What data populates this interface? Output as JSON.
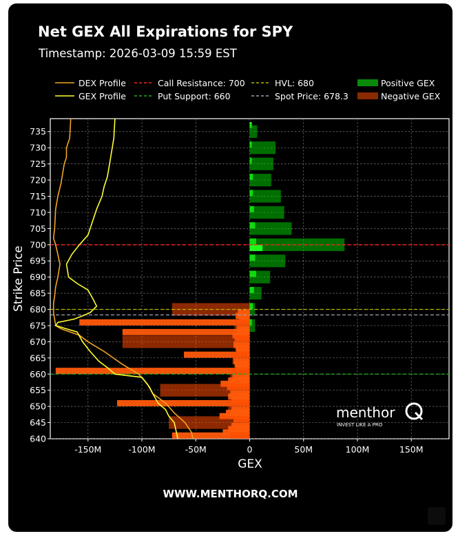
{
  "title": "Net GEX All Expirations for SPY",
  "subtitle": "Timestamp: 2026-03-09 15:59 EST",
  "footer": "WWW.MENTHORQ.COM",
  "logo": {
    "name": "menthor",
    "tagline": "INVEST LIKE A PRO"
  },
  "colors": {
    "background": "#000000",
    "positive_gex": "#00d000",
    "negative_gex": "#ff4400",
    "dex_profile": "#f5a623",
    "gex_profile": "#ffff33",
    "call_resistance": "#ff2020",
    "put_support": "#20b020",
    "hvl": "#b8b800",
    "spot_price": "#9aa3b5"
  },
  "legend": [
    {
      "key": "dex",
      "label": "DEX Profile",
      "style": "solid",
      "color": "#f5a623"
    },
    {
      "key": "gex",
      "label": "GEX Profile",
      "style": "solid",
      "color": "#ffff33"
    },
    {
      "key": "callres",
      "label": "Call Resistance: 700",
      "style": "dashed",
      "color": "#ff2020"
    },
    {
      "key": "putsup",
      "label": "Put Support: 660",
      "style": "dashed",
      "color": "#20b020"
    },
    {
      "key": "hvl",
      "label": "HVL: 680",
      "style": "dashed",
      "color": "#b8b800"
    },
    {
      "key": "spot",
      "label": "Spot Price: 678.3",
      "style": "dashed",
      "color": "#9aa3b5"
    },
    {
      "key": "pos",
      "label": "Positive GEX",
      "style": "box",
      "color": "#0a8a0a"
    },
    {
      "key": "neg",
      "label": "Negative GEX",
      "style": "box",
      "color": "#8a2a00"
    }
  ],
  "chart_data": {
    "type": "bar",
    "orientation": "horizontal",
    "xlabel": "GEX",
    "ylabel": "Strike Price",
    "xlim": [
      -185,
      185
    ],
    "ylim": [
      640,
      739
    ],
    "x_unit": "M",
    "grid": true,
    "legend_position": "top",
    "x_ticks": [
      "-150M",
      "-100M",
      "-50M",
      "0",
      "50M",
      "100M",
      "150M"
    ],
    "y_ticks": [
      640,
      645,
      650,
      655,
      660,
      665,
      670,
      675,
      680,
      685,
      690,
      695,
      700,
      705,
      710,
      715,
      720,
      725,
      730,
      735
    ],
    "levels": [
      {
        "name": "Call Resistance",
        "value": 700
      },
      {
        "name": "Put Support",
        "value": 660
      },
      {
        "name": "HVL",
        "value": 680
      },
      {
        "name": "Spot Price",
        "value": 678.3
      }
    ],
    "series": [
      {
        "name": "Positive GEX",
        "strikes": [
          737,
          735,
          731,
          730,
          726,
          725,
          721,
          720,
          716,
          715,
          711,
          710,
          706,
          705,
          701,
          700,
          699,
          696,
          695,
          691,
          690,
          686,
          685,
          681,
          680,
          676,
          675
        ],
        "values": [
          2,
          7,
          2,
          24,
          2,
          22,
          3,
          20,
          3,
          29,
          4,
          32,
          5,
          39,
          6,
          88,
          12,
          5,
          33,
          6,
          19,
          4,
          11,
          3,
          5,
          2,
          5
        ]
      },
      {
        "name": "Negative GEX",
        "strikes": [
          680,
          679,
          678,
          677,
          676,
          675,
          674,
          673,
          672,
          671,
          670,
          669,
          668,
          667,
          666,
          665,
          664,
          663,
          662,
          661,
          660,
          659,
          658,
          657,
          656,
          655,
          654,
          653,
          652,
          651,
          650,
          649,
          648,
          647,
          646,
          645,
          644,
          643,
          642,
          641,
          640
        ],
        "values": [
          -72,
          -11,
          -13,
          -10,
          -158,
          -14,
          -12,
          -118,
          -16,
          -14,
          -118,
          -15,
          -13,
          -12,
          -61,
          -16,
          -15,
          -14,
          -13,
          -180,
          -18,
          -16,
          -20,
          -27,
          -21,
          -83,
          -18,
          -20,
          -17,
          -123,
          -20,
          -17,
          -22,
          -28,
          -15,
          -75,
          -17,
          -20,
          -25,
          -72,
          -18
        ]
      }
    ],
    "profiles": [
      {
        "name": "DEX Profile",
        "points": [
          [
            -166,
            739
          ],
          [
            -167,
            733
          ],
          [
            -170,
            730
          ],
          [
            -170,
            727
          ],
          [
            -172,
            725
          ],
          [
            -175,
            719
          ],
          [
            -178,
            715
          ],
          [
            -180,
            711
          ],
          [
            -181,
            705
          ],
          [
            -182,
            702
          ],
          [
            -180,
            700
          ],
          [
            -178,
            697
          ],
          [
            -176,
            694
          ],
          [
            -177,
            692
          ],
          [
            -178,
            690
          ],
          [
            -180,
            687
          ],
          [
            -181,
            684
          ],
          [
            -182,
            682
          ],
          [
            -182,
            679
          ],
          [
            -181,
            677
          ],
          [
            -180,
            675
          ],
          [
            -175,
            674
          ],
          [
            -158,
            672
          ],
          [
            -150,
            670
          ],
          [
            -135,
            667
          ],
          [
            -118,
            663
          ],
          [
            -103,
            660
          ],
          [
            -95,
            657
          ],
          [
            -90,
            654
          ],
          [
            -78,
            651
          ],
          [
            -70,
            648
          ],
          [
            -60,
            645
          ],
          [
            -54,
            642
          ],
          [
            -52,
            639
          ]
        ]
      },
      {
        "name": "GEX Profile",
        "points": [
          [
            -125,
            739
          ],
          [
            -126,
            733
          ],
          [
            -128,
            729
          ],
          [
            -130,
            725
          ],
          [
            -132,
            721
          ],
          [
            -135,
            718
          ],
          [
            -137,
            715
          ],
          [
            -142,
            711
          ],
          [
            -146,
            707
          ],
          [
            -150,
            703
          ],
          [
            -158,
            700
          ],
          [
            -165,
            697
          ],
          [
            -170,
            694
          ],
          [
            -168,
            690
          ],
          [
            -160,
            688
          ],
          [
            -150,
            686
          ],
          [
            -145,
            683
          ],
          [
            -142,
            681
          ],
          [
            -148,
            679
          ],
          [
            -155,
            678
          ],
          [
            -163,
            677
          ],
          [
            -178,
            676
          ],
          [
            -180,
            675
          ],
          [
            -160,
            673
          ],
          [
            -155,
            670
          ],
          [
            -148,
            667
          ],
          [
            -140,
            664
          ],
          [
            -132,
            662
          ],
          [
            -125,
            660
          ],
          [
            -100,
            659
          ],
          [
            -93,
            656
          ],
          [
            -90,
            654
          ],
          [
            -85,
            651
          ],
          [
            -78,
            649
          ],
          [
            -75,
            647
          ],
          [
            -70,
            645
          ],
          [
            -68,
            642
          ],
          [
            -66,
            639
          ]
        ]
      }
    ]
  }
}
